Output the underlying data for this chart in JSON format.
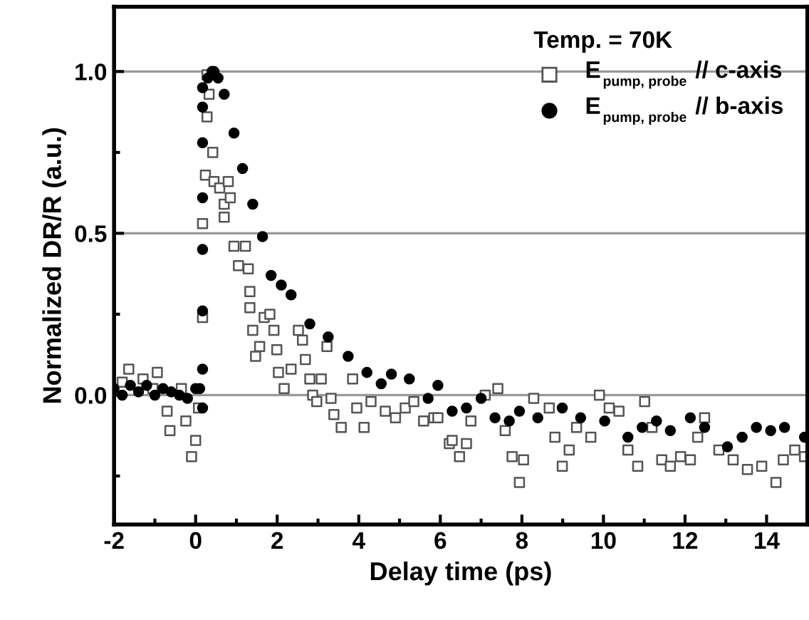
{
  "chart_data": {
    "type": "scatter",
    "xlabel": "Delay time (ps)",
    "ylabel": "Normalized DR/R (a.u.)",
    "legend_title": "Temp. = 70K",
    "xlim": [
      -2,
      15
    ],
    "ylim": [
      -0.4,
      1.2
    ],
    "xticks": [
      -2,
      {
        "value": -1,
        "label": null
      },
      0,
      {
        "value": 1,
        "label": null
      },
      2,
      {
        "value": 3,
        "label": null
      },
      4,
      {
        "value": 5,
        "label": null
      },
      6,
      {
        "value": 7,
        "label": null
      },
      8,
      {
        "value": 9,
        "label": null
      },
      10,
      {
        "value": 11,
        "label": null
      },
      12,
      {
        "value": 13,
        "label": null
      },
      14
    ],
    "yticks": [
      {
        "value": -0.25,
        "label": null
      },
      {
        "value": 0,
        "label": "0.0"
      },
      {
        "value": 0.25,
        "label": null
      },
      {
        "value": 0.5,
        "label": "0.5"
      },
      {
        "value": 0.75,
        "label": null
      },
      {
        "value": 1.0,
        "label": "1.0"
      }
    ],
    "grid": "y",
    "legend": "top right",
    "series": [
      {
        "name": "E$_{pump, probe}$ // c-axis",
        "color": "#555555",
        "marker": "square",
        "x": [
          -1.8,
          -1.64,
          -1.29,
          -1.05,
          -0.94,
          -0.7,
          -0.63,
          -0.35,
          -0.24,
          -0.1,
          0.0,
          0.07,
          0.17,
          0.17,
          0.24,
          0.28,
          0.28,
          0.33,
          0.42,
          0.45,
          0.59,
          0.7,
          0.7,
          0.8,
          0.85,
          0.94,
          1.05,
          1.22,
          1.29,
          1.33,
          1.33,
          1.4,
          1.47,
          1.57,
          1.68,
          1.82,
          1.92,
          1.99,
          2.03,
          2.17,
          2.34,
          2.52,
          2.62,
          2.69,
          2.8,
          2.87,
          2.97,
          3.08,
          3.22,
          3.32,
          3.39,
          3.57,
          3.85,
          3.95,
          4.13,
          4.3,
          4.65,
          4.9,
          5.14,
          5.35,
          5.59,
          5.84,
          5.94,
          6.22,
          6.29,
          6.47,
          6.64,
          6.75,
          7.1,
          7.41,
          7.59,
          7.76,
          7.94,
          8.04,
          8.29,
          8.67,
          8.81,
          8.99,
          9.16,
          9.34,
          9.69,
          9.9,
          10.14,
          10.38,
          10.6,
          10.84,
          11.01,
          11.19,
          11.43,
          11.64,
          11.89,
          12.13,
          12.31,
          12.48,
          12.83,
          13.18,
          13.53,
          13.88,
          14.23,
          14.41,
          14.69,
          14.93
        ],
        "values": [
          0.04,
          0.08,
          0.05,
          0.02,
          0.07,
          -0.05,
          -0.11,
          0.02,
          -0.08,
          -0.19,
          -0.14,
          -0.04,
          0.24,
          0.53,
          0.68,
          0.86,
          0.99,
          0.93,
          0.75,
          0.66,
          0.64,
          0.59,
          0.55,
          0.66,
          0.61,
          0.46,
          0.4,
          0.46,
          0.39,
          0.32,
          0.27,
          0.2,
          0.12,
          0.15,
          0.24,
          0.25,
          0.2,
          0.14,
          0.07,
          0.02,
          0.08,
          0.2,
          0.17,
          0.11,
          0.05,
          0.0,
          -0.02,
          0.05,
          0.15,
          -0.01,
          -0.06,
          -0.1,
          0.05,
          -0.04,
          -0.1,
          -0.02,
          -0.05,
          -0.07,
          -0.04,
          -0.02,
          -0.08,
          -0.07,
          -0.07,
          -0.15,
          -0.14,
          -0.19,
          -0.15,
          -0.08,
          0.0,
          0.02,
          -0.11,
          -0.19,
          -0.27,
          -0.2,
          -0.01,
          -0.04,
          -0.13,
          -0.22,
          -0.17,
          -0.1,
          -0.13,
          0.0,
          -0.04,
          -0.05,
          -0.17,
          -0.22,
          -0.02,
          -0.1,
          -0.2,
          -0.22,
          -0.19,
          -0.2,
          -0.13,
          -0.07,
          -0.17,
          -0.2,
          -0.23,
          -0.22,
          -0.27,
          -0.2,
          -0.17,
          -0.19
        ]
      },
      {
        "name": "E$_{pump, probe}$ // b-axis",
        "color": "#000000",
        "marker": "circle",
        "x": [
          -2.0,
          -1.8,
          -1.6,
          -1.4,
          -1.2,
          -1.0,
          -0.8,
          -0.6,
          -0.4,
          -0.2,
          0.0,
          0.1,
          0.17,
          0.17,
          0.17,
          0.17,
          0.17,
          0.17,
          0.17,
          0.17,
          0.3,
          0.4,
          0.45,
          0.55,
          0.7,
          0.94,
          1.15,
          1.4,
          1.64,
          1.85,
          2.1,
          2.34,
          2.8,
          3.25,
          3.74,
          4.2,
          4.55,
          4.8,
          5.24,
          5.7,
          5.94,
          6.29,
          6.64,
          7.0,
          7.34,
          7.69,
          7.94,
          8.39,
          8.99,
          9.44,
          10.03,
          10.6,
          10.95,
          11.3,
          11.64,
          12.13,
          12.48,
          13.04,
          13.4,
          13.75,
          14.1,
          14.44,
          14.93
        ],
        "values": [
          0.02,
          0.0,
          0.03,
          0.01,
          0.03,
          0.0,
          0.02,
          0.01,
          0.0,
          -0.01,
          0.02,
          0.02,
          0.08,
          -0.04,
          0.26,
          0.45,
          0.61,
          0.78,
          0.89,
          0.95,
          0.98,
          1.0,
          1.0,
          0.98,
          0.93,
          0.81,
          0.7,
          0.59,
          0.49,
          0.37,
          0.34,
          0.31,
          0.22,
          0.18,
          0.12,
          0.07,
          0.035,
          0.065,
          0.05,
          -0.01,
          0.03,
          -0.05,
          -0.04,
          -0.01,
          -0.07,
          -0.08,
          -0.05,
          -0.07,
          -0.04,
          -0.07,
          -0.08,
          -0.13,
          -0.1,
          -0.08,
          -0.11,
          -0.07,
          -0.1,
          -0.16,
          -0.13,
          -0.1,
          -0.11,
          -0.1,
          -0.13
        ]
      }
    ]
  }
}
